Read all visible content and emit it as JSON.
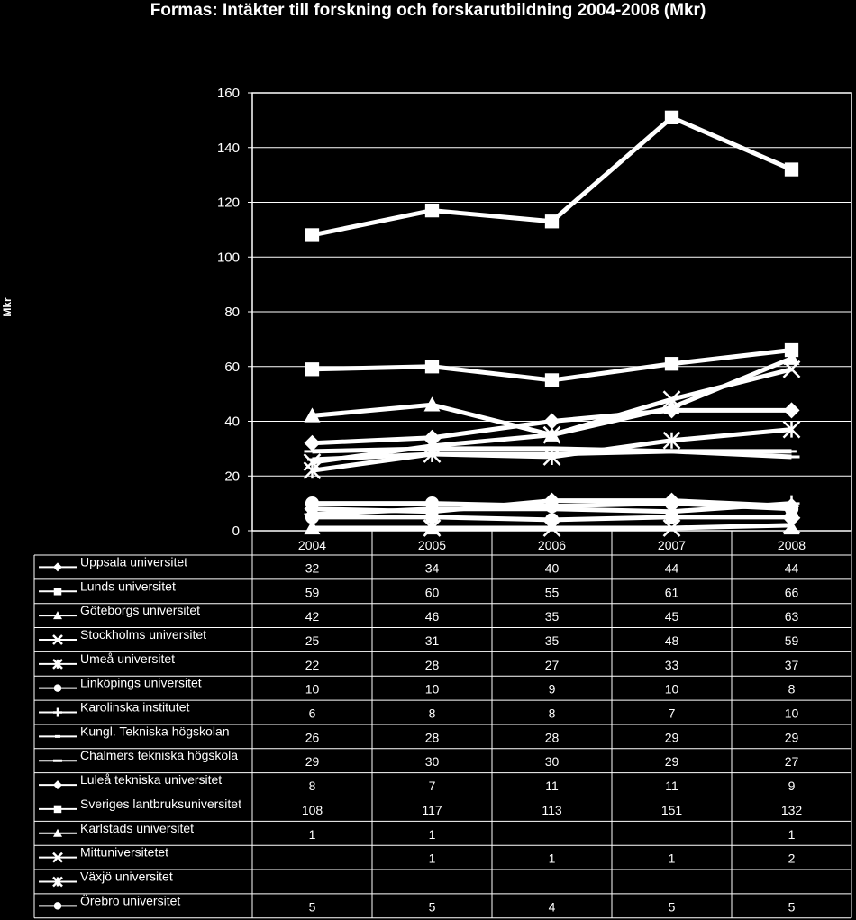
{
  "chart_data": {
    "type": "line",
    "title": "Formas: Intäkter till forskning och forskarutbildning 2004-2008 (Mkr)",
    "ylabel": "Mkr",
    "xlabel": "",
    "ylim": [
      0,
      160
    ],
    "yticks": [
      0,
      20,
      40,
      60,
      80,
      100,
      120,
      140,
      160
    ],
    "grid": true,
    "legend": "data-table",
    "colors": {
      "background": "#000000",
      "line": "#ffffff",
      "grid": "#ffffff"
    },
    "x": [
      "2004",
      "2005",
      "2006",
      "2007",
      "2008"
    ],
    "series": [
      {
        "name": "Uppsala universitet",
        "marker": "diamond",
        "values": [
          32,
          34,
          40,
          44,
          44
        ]
      },
      {
        "name": "Lunds universitet",
        "marker": "square",
        "values": [
          59,
          60,
          55,
          61,
          66
        ]
      },
      {
        "name": "Göteborgs universitet",
        "marker": "triangle",
        "values": [
          42,
          46,
          35,
          45,
          63
        ]
      },
      {
        "name": "Stockholms universitet",
        "marker": "x",
        "values": [
          25,
          31,
          35,
          48,
          59
        ]
      },
      {
        "name": "Umeå universitet",
        "marker": "star",
        "values": [
          22,
          28,
          27,
          33,
          37
        ]
      },
      {
        "name": "Linköpings universitet",
        "marker": "circle",
        "values": [
          10,
          10,
          9,
          10,
          8
        ]
      },
      {
        "name": "Karolinska institutet",
        "marker": "plus",
        "values": [
          6,
          8,
          8,
          7,
          10
        ]
      },
      {
        "name": "Kungl. Tekniska högskolan",
        "marker": "dash",
        "values": [
          26,
          28,
          28,
          29,
          29
        ]
      },
      {
        "name": "Chalmers tekniska högskola",
        "marker": "longdash",
        "values": [
          29,
          30,
          30,
          29,
          27
        ]
      },
      {
        "name": "Luleå tekniska universitet",
        "marker": "diamond",
        "values": [
          8,
          7,
          11,
          11,
          9
        ]
      },
      {
        "name": "Sveriges lantbruksuniversitet",
        "marker": "square",
        "values": [
          108,
          117,
          113,
          151,
          132
        ]
      },
      {
        "name": "Karlstads universitet",
        "marker": "triangle",
        "values": [
          1,
          1,
          null,
          null,
          1
        ]
      },
      {
        "name": "Mittuniversitetet",
        "marker": "x",
        "values": [
          null,
          1,
          1,
          1,
          2
        ]
      },
      {
        "name": "Växjö universitet",
        "marker": "star",
        "values": [
          null,
          null,
          null,
          null,
          null
        ]
      },
      {
        "name": "Örebro universitet",
        "marker": "circle",
        "values": [
          5,
          5,
          4,
          5,
          5
        ]
      }
    ]
  }
}
